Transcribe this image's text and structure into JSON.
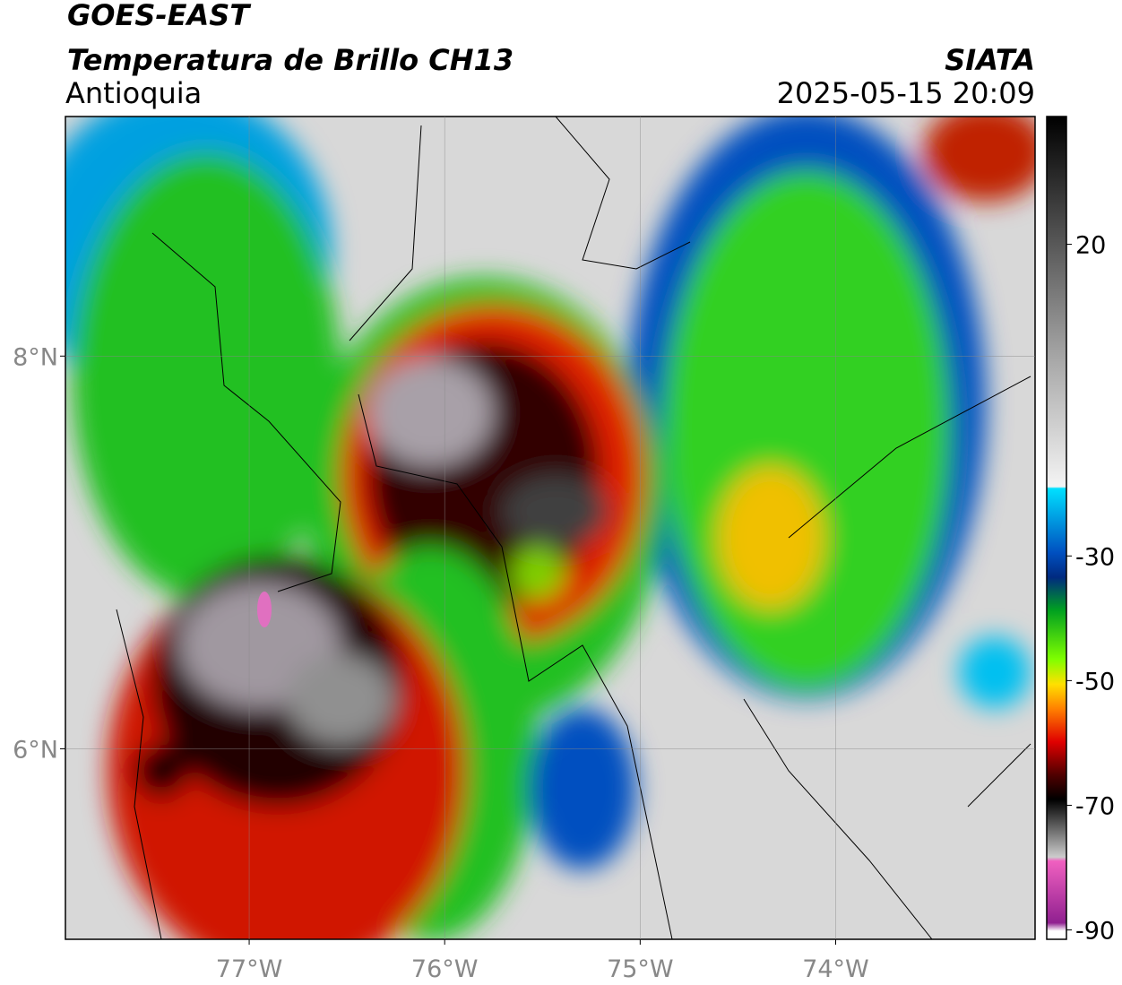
{
  "header": {
    "title": "GOES-EAST",
    "subtitle": "Temperatura de Brillo CH13",
    "region": "Antioquia",
    "source": "SIATA",
    "datetime": "2025-05-15 20:09"
  },
  "map": {
    "xlim": [
      -77.94,
      -72.98
    ],
    "ylim": [
      5.03,
      9.22
    ],
    "xticks": [
      {
        "value": -77,
        "label": "77°W"
      },
      {
        "value": -76,
        "label": "76°W"
      },
      {
        "value": -75,
        "label": "75°W"
      },
      {
        "value": -74,
        "label": "74°W"
      }
    ],
    "yticks": [
      {
        "value": 8,
        "label": "8°N"
      },
      {
        "value": 6,
        "label": "6°N"
      }
    ],
    "grid": true
  },
  "colorbar": {
    "lim": [
      -91.5,
      40.5
    ],
    "ticks": [
      20,
      -30,
      -50,
      -70,
      -90
    ]
  }
}
